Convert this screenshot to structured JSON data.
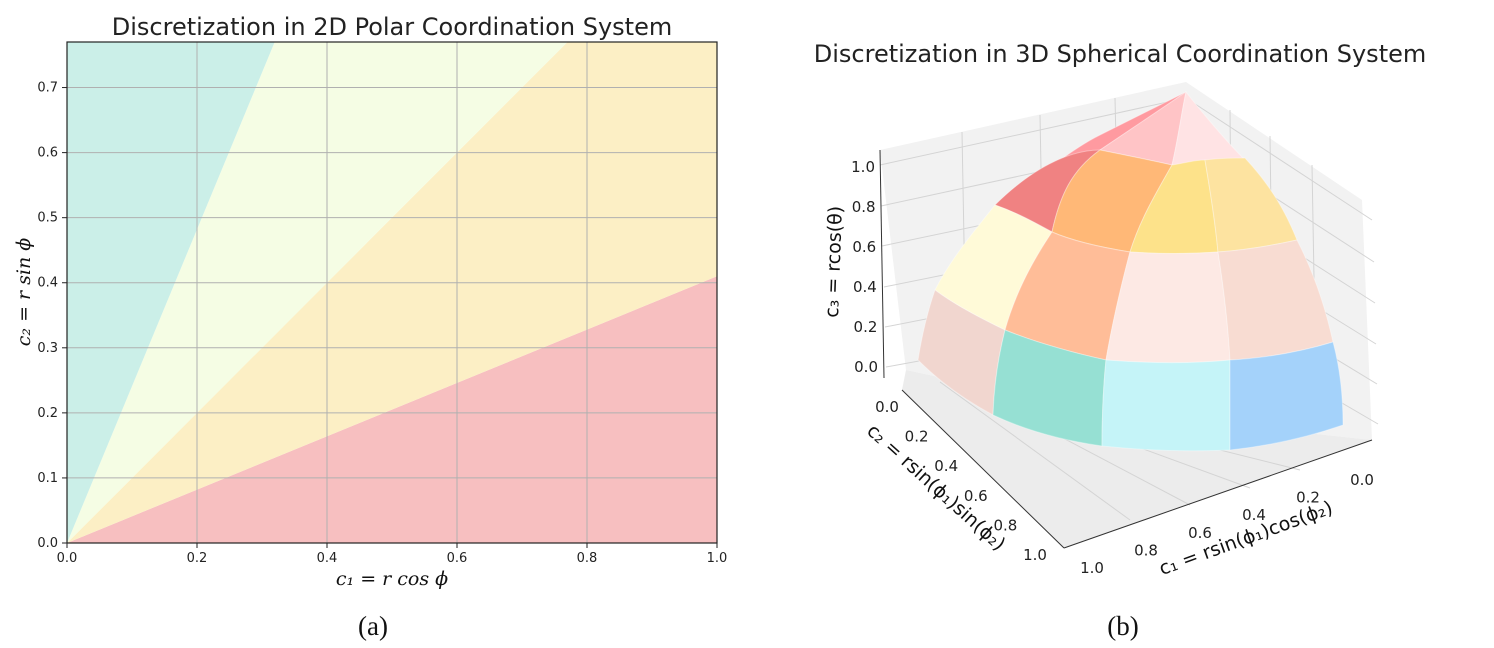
{
  "chart_data": [
    {
      "type": "area",
      "title": "Discretization in 2D Polar Coordination System",
      "xlabel": "c₁ = r cos ϕ",
      "ylabel": "c₂ = r sin ϕ",
      "xlim": [
        0.0,
        1.0
      ],
      "ylim": [
        0.0,
        0.77
      ],
      "xticks": [
        "0.0",
        "0.2",
        "0.4",
        "0.6",
        "0.8",
        "1.0"
      ],
      "yticks": [
        "0.0",
        "0.1",
        "0.2",
        "0.3",
        "0.4",
        "0.5",
        "0.6",
        "0.7"
      ],
      "grid": true,
      "regions": [
        {
          "slope_from": 0.0,
          "slope_to": 0.41,
          "color": "#f7bfc0"
        },
        {
          "slope_from": 0.41,
          "slope_to": 1.0,
          "color": "#fcefc5"
        },
        {
          "slope_from": 1.0,
          "slope_to": 2.41,
          "color": "#f5fde4"
        },
        {
          "slope_from": 2.41,
          "slope_to": null,
          "color": "#cbefe8"
        }
      ]
    },
    {
      "type": "surface3d",
      "title": "Discretization in 3D Spherical Coordination System",
      "xlabel": "c₁ = rsin(ϕ₁)cos(ϕ₂)",
      "ylabel": "c₂ = rsin(ϕ₁)sin(ϕ₂)",
      "zlabel": "c₃ = rcos(θ)",
      "xticks": [
        "0.0",
        "0.2",
        "0.4",
        "0.6",
        "0.8",
        "1.0"
      ],
      "yticks": [
        "0.0",
        "0.2",
        "0.4",
        "0.6",
        "0.8",
        "1.0"
      ],
      "zticks": [
        "0.0",
        "0.2",
        "0.4",
        "0.6",
        "0.8",
        "1.0"
      ],
      "patch_colors": {
        "top_left": "#ff9aa0",
        "top_center": "#ffc4c6",
        "top_right": "#ffe3e4",
        "row2_left": "#f08282",
        "row2_midleft": "#ffb877",
        "row2_midright": "#fde28a",
        "row2_right": "#fde3a0",
        "row3_left": "#fffad8",
        "row3_midleft": "#ffbd98",
        "row3_midright": "#fde9e4",
        "row3_right": "#f8dcd2",
        "row4_left": "#f1d6cf",
        "row4_midleft": "#96e0d3",
        "row4_midright": "#c5f4f8",
        "row4_right": "#a4d2fa"
      }
    }
  ],
  "captions": {
    "a": "(a)",
    "b": "(b)"
  }
}
